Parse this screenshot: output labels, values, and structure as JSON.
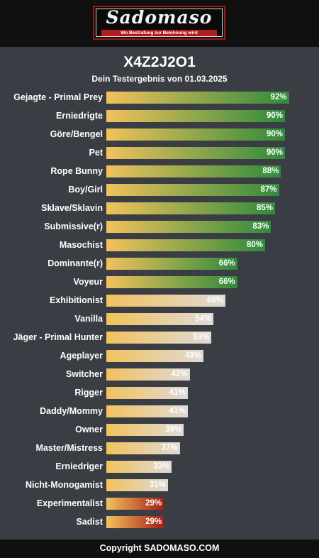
{
  "header": {
    "logo_text": "Sadomaso",
    "logo_tagline": "Wo Bestrafung zur Belohnung wird"
  },
  "title": "X4Z2J2O1",
  "subtitle": "Dein Testergebnis von 01.03.2025",
  "colors": {
    "green_end": "#2e8b3c",
    "grey_end": "#dedad8",
    "red_end": "#a51d17",
    "gold_start": "#f2c25c",
    "background": "#3a3d43",
    "bar_black": "#101010"
  },
  "chart_data": {
    "type": "bar",
    "orientation": "horizontal",
    "categories": [
      "Gejagte - Primal Prey",
      "Erniedrigte",
      "Göre/Bengel",
      "Pet",
      "Rope Bunny",
      "Boy/Girl",
      "Sklave/Sklavin",
      "Submissive(r)",
      "Masochist",
      "Dominante(r)",
      "Voyeur",
      "Exhibitionist",
      "Vanilla",
      "Jäger - Primal Hunter",
      "Ageplayer",
      "Switcher",
      "Rigger",
      "Daddy/Mommy",
      "Owner",
      "Master/Mistress",
      "Erniedriger",
      "Nicht-Monogamist",
      "Experimentalist",
      "Sadist"
    ],
    "values": [
      92,
      90,
      90,
      90,
      88,
      87,
      85,
      83,
      80,
      66,
      66,
      60,
      54,
      53,
      49,
      42,
      41,
      41,
      39,
      37,
      33,
      31,
      29,
      29
    ],
    "value_labels": [
      "92%",
      "90%",
      "90%",
      "90%",
      "88%",
      "87%",
      "85%",
      "83%",
      "80%",
      "66%",
      "66%",
      "60%",
      "54%",
      "53%",
      "49%",
      "42%",
      "41%",
      "41%",
      "39%",
      "37%",
      "33%",
      "31%",
      "29%",
      "29%"
    ],
    "tones": [
      "green",
      "green",
      "green",
      "green",
      "green",
      "green",
      "green",
      "green",
      "green",
      "green",
      "green",
      "grey",
      "grey",
      "grey",
      "grey",
      "grey",
      "grey",
      "grey",
      "grey",
      "grey",
      "grey",
      "grey",
      "red",
      "red"
    ],
    "xlim": [
      0,
      100
    ],
    "grid": false,
    "legend": "none"
  },
  "footer": {
    "copyright": "Copyright SADOMASO.COM"
  }
}
